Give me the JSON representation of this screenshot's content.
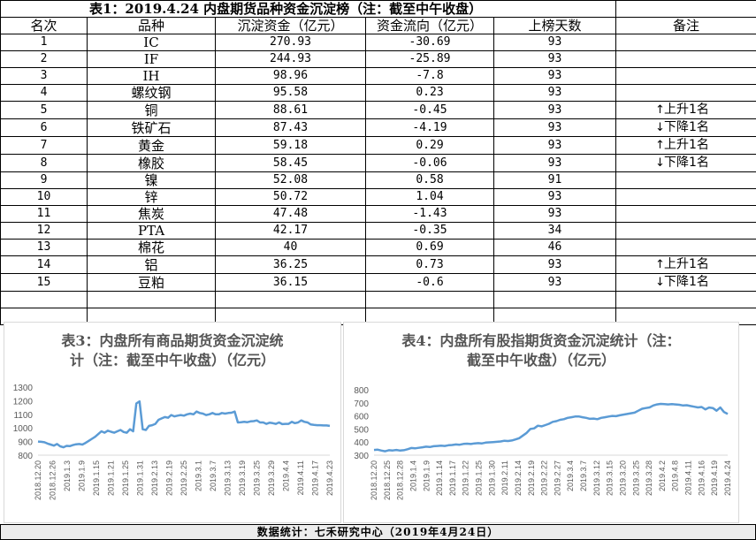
{
  "table": {
    "title": "表1：2019.4.24 内盘期货品种资金沉淀榜（注：截至中午收盘）",
    "headers": [
      "名次",
      "品种",
      "沉淀资金（亿元）",
      "资金流向（亿元）",
      "上榜天数",
      "备注"
    ],
    "rows": [
      {
        "rank": "1",
        "name": "IC",
        "amount": "270.93",
        "flow": "-30.69",
        "days": "93",
        "note": "",
        "arrow": ""
      },
      {
        "rank": "2",
        "name": "IF",
        "amount": "244.93",
        "flow": "-25.89",
        "days": "93",
        "note": "",
        "arrow": ""
      },
      {
        "rank": "3",
        "name": "IH",
        "amount": "98.96",
        "flow": "-7.8",
        "days": "93",
        "note": "",
        "arrow": ""
      },
      {
        "rank": "4",
        "name": "螺纹钢",
        "amount": "95.58",
        "flow": "0.23",
        "days": "93",
        "note": "",
        "arrow": ""
      },
      {
        "rank": "5",
        "name": "铜",
        "amount": "88.61",
        "flow": "-0.45",
        "days": "93",
        "note": "上升1名",
        "arrow": "↑"
      },
      {
        "rank": "6",
        "name": "铁矿石",
        "amount": "87.43",
        "flow": "-4.19",
        "days": "93",
        "note": "下降1名",
        "arrow": "↓"
      },
      {
        "rank": "7",
        "name": "黄金",
        "amount": "59.18",
        "flow": "0.29",
        "days": "93",
        "note": "上升1名",
        "arrow": "↑"
      },
      {
        "rank": "8",
        "name": "橡胶",
        "amount": "58.45",
        "flow": "-0.06",
        "days": "93",
        "note": "下降1名",
        "arrow": "↓"
      },
      {
        "rank": "9",
        "name": "镍",
        "amount": "52.08",
        "flow": "0.58",
        "days": "91",
        "note": "",
        "arrow": ""
      },
      {
        "rank": "10",
        "name": "锌",
        "amount": "50.72",
        "flow": "1.04",
        "days": "93",
        "note": "",
        "arrow": ""
      },
      {
        "rank": "11",
        "name": "焦炭",
        "amount": "47.48",
        "flow": "-1.43",
        "days": "93",
        "note": "",
        "arrow": ""
      },
      {
        "rank": "12",
        "name": "PTA",
        "amount": "42.17",
        "flow": "-0.35",
        "days": "34",
        "note": "",
        "arrow": ""
      },
      {
        "rank": "13",
        "name": "棉花",
        "amount": "40",
        "flow": "0.69",
        "days": "46",
        "note": "",
        "arrow": ""
      },
      {
        "rank": "14",
        "name": "铝",
        "amount": "36.25",
        "flow": "0.73",
        "days": "93",
        "note": "上升1名",
        "arrow": "↑"
      },
      {
        "rank": "15",
        "name": "豆粕",
        "amount": "36.15",
        "flow": "-0.6",
        "days": "93",
        "note": "下降1名",
        "arrow": "↓"
      }
    ]
  },
  "footer": "数据统计：七禾研究中心（2019年4月24日）",
  "colors": {
    "line": "#5b9bd5",
    "axis": "#d9d9d9",
    "text": "#595959"
  },
  "chart_data": [
    {
      "type": "line",
      "title": "表3：内盘所有商品期货资金沉淀统计（注：截至中午收盘）（亿元）",
      "title_lines": [
        "表3：内盘所有商品期货资金沉淀统",
        "计（注：截至中午收盘）（亿元）"
      ],
      "ylim": [
        800,
        1300
      ],
      "yticks": [
        800,
        900,
        1000,
        1100,
        1200,
        1300
      ],
      "grid": false,
      "x_labels": [
        "2018.12.20",
        "2018.12.26",
        "2019.1.3",
        "2019.1.9",
        "2019.1.15",
        "2019.1.21",
        "2019.1.25",
        "2019.1.31",
        "2019.2.13",
        "2019.2.19",
        "2019.2.25",
        "2019.3.1",
        "2019.3.7",
        "2019.3.13",
        "2019.3.19",
        "2019.3.25",
        "2019.3.29",
        "2019.4.4",
        "2019.4.11",
        "2019.4.17",
        "2019.4.23"
      ],
      "values": [
        900,
        898,
        895,
        885,
        878,
        870,
        882,
        865,
        858,
        868,
        866,
        874,
        880,
        882,
        878,
        890,
        905,
        920,
        935,
        955,
        975,
        965,
        980,
        972,
        965,
        975,
        985,
        970,
        965,
        990,
        975,
        1180,
        1195,
        990,
        985,
        1015,
        1020,
        1030,
        1060,
        1070,
        1080,
        1075,
        1095,
        1085,
        1090,
        1095,
        1090,
        1100,
        1105,
        1100,
        1120,
        1110,
        1105,
        1095,
        1100,
        1110,
        1100,
        1100,
        1110,
        1105,
        1110,
        1112,
        1120,
        1040,
        1042,
        1045,
        1042,
        1048,
        1050,
        1055,
        1040,
        1040,
        1030,
        1038,
        1035,
        1030,
        1040,
        1028,
        1030,
        1030,
        1045,
        1035,
        1040,
        1055,
        1045,
        1040,
        1025,
        1022,
        1020,
        1020,
        1018,
        1018,
        1015
      ]
    },
    {
      "type": "line",
      "title": "表4：内盘所有股指期货资金沉淀统计（注：截至中午收盘）（亿元）",
      "title_lines": [
        "表4：内盘所有股指期货资金沉淀统计（注：",
        "截至中午收盘）（亿元）"
      ],
      "ylim": [
        300,
        800
      ],
      "yticks": [
        300,
        400,
        500,
        600,
        700,
        800
      ],
      "grid": false,
      "x_labels": [
        "2018.12.20",
        "2018.12.25",
        "2018.12.28",
        "2019.1.4",
        "2019.1.9",
        "2019.1.14",
        "2019.1.17",
        "2019.1.22",
        "2019.1.25",
        "2019.1.30",
        "2019.2.11",
        "2019.2.14",
        "2019.2.19",
        "2019.2.22",
        "2019.2.27",
        "2019.3.4",
        "2019.3.7",
        "2019.3.12",
        "2019.3.15",
        "2019.3.20",
        "2019.3.25",
        "2019.3.28",
        "2019.4.2",
        "2019.4.8",
        "2019.4.11",
        "2019.4.16",
        "2019.4.19",
        "2019.4.24"
      ],
      "values": [
        340,
        342,
        335,
        330,
        338,
        336,
        340,
        335,
        338,
        345,
        355,
        352,
        356,
        360,
        365,
        362,
        368,
        370,
        372,
        370,
        376,
        378,
        382,
        380,
        386,
        388,
        385,
        390,
        392,
        390,
        396,
        398,
        400,
        402,
        405,
        410,
        408,
        412,
        420,
        430,
        450,
        470,
        500,
        505,
        525,
        520,
        530,
        540,
        555,
        560,
        570,
        575,
        585,
        590,
        595,
        596,
        590,
        585,
        578,
        580,
        575,
        585,
        590,
        595,
        600,
        598,
        605,
        610,
        615,
        620,
        625,
        640,
        655,
        660,
        665,
        680,
        688,
        692,
        690,
        688,
        690,
        688,
        685,
        680,
        682,
        676,
        670,
        665,
        668,
        650,
        664,
        660,
        640,
        664,
        630,
        615
      ]
    }
  ]
}
